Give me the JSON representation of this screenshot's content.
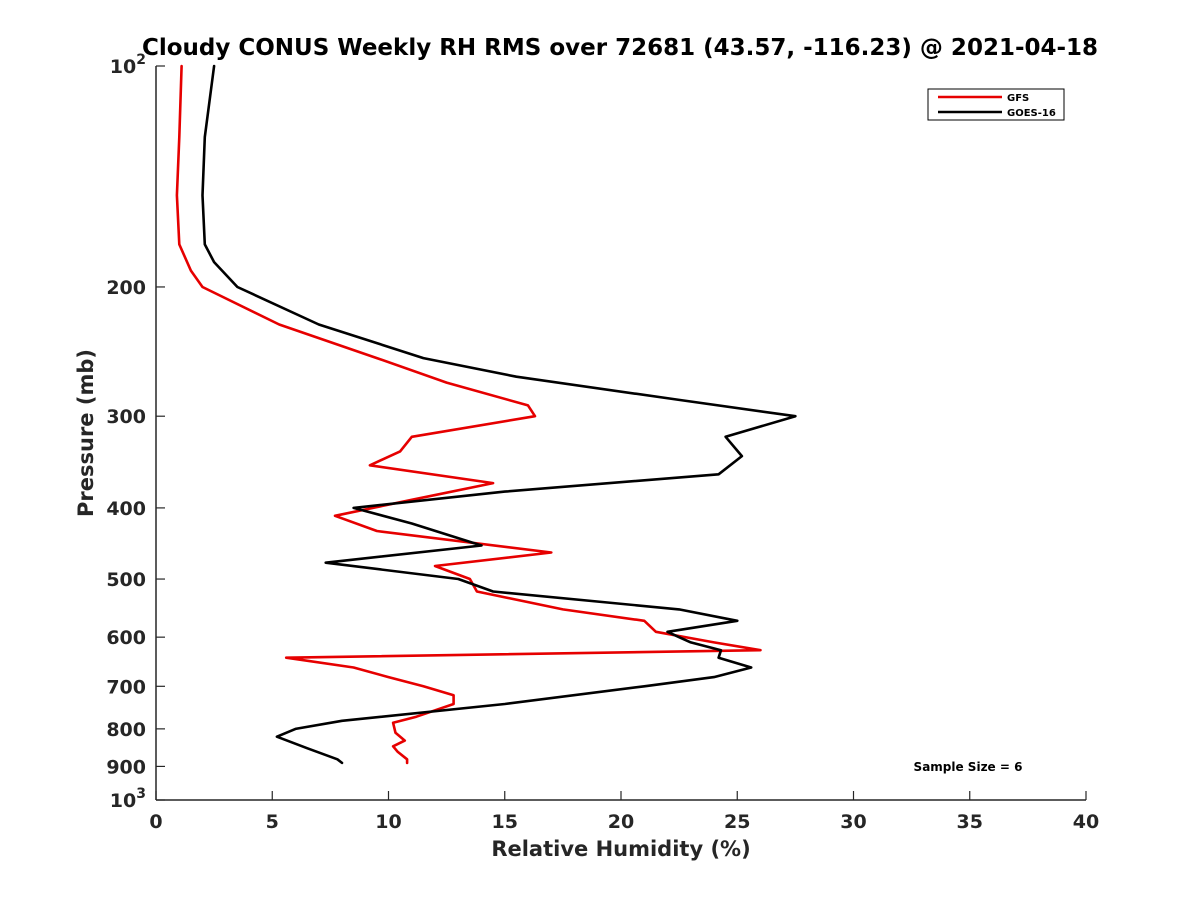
{
  "chart_data": {
    "type": "line",
    "title": "Cloudy CONUS Weekly RH RMS over 72681 (43.57, -116.23) @ 2021-04-18",
    "xlabel": "Relative Humidity (%)",
    "ylabel": "Pressure (mb)",
    "xlim": [
      0,
      40
    ],
    "ylim": [
      100,
      1000
    ],
    "y_scale": "log",
    "y_reversed": true,
    "x_ticks": [
      0,
      5,
      10,
      15,
      20,
      25,
      30,
      35,
      40
    ],
    "x_tick_labels": [
      "0",
      "5",
      "10",
      "15",
      "20",
      "25",
      "30",
      "35",
      "40"
    ],
    "y_ticks": [
      {
        "value": 100,
        "label": "10",
        "sup": "2"
      },
      {
        "value": 200,
        "label": "200",
        "sup": ""
      },
      {
        "value": 300,
        "label": "300",
        "sup": ""
      },
      {
        "value": 400,
        "label": "400",
        "sup": ""
      },
      {
        "value": 500,
        "label": "500",
        "sup": ""
      },
      {
        "value": 600,
        "label": "600",
        "sup": ""
      },
      {
        "value": 700,
        "label": "700",
        "sup": ""
      },
      {
        "value": 800,
        "label": "800",
        "sup": ""
      },
      {
        "value": 900,
        "label": "900",
        "sup": ""
      },
      {
        "value": 1000,
        "label": "10",
        "sup": "3"
      }
    ],
    "legend_position": "top-right",
    "grid": false,
    "annotation": "Sample Size = 6",
    "series": [
      {
        "name": "GFS",
        "color": "#e60000",
        "points": [
          [
            1.1,
            100
          ],
          [
            1.0,
            125
          ],
          [
            0.9,
            150
          ],
          [
            1.0,
            175
          ],
          [
            1.5,
            190
          ],
          [
            2.0,
            200
          ],
          [
            5.3,
            225
          ],
          [
            9.5,
            250
          ],
          [
            12.5,
            270
          ],
          [
            16.0,
            290
          ],
          [
            16.3,
            300
          ],
          [
            11.0,
            320
          ],
          [
            10.5,
            335
          ],
          [
            9.2,
            350
          ],
          [
            14.5,
            370
          ],
          [
            11.0,
            390
          ],
          [
            7.7,
            410
          ],
          [
            9.5,
            430
          ],
          [
            17.0,
            460
          ],
          [
            12.0,
            480
          ],
          [
            13.5,
            500
          ],
          [
            13.8,
            520
          ],
          [
            17.5,
            550
          ],
          [
            21.0,
            570
          ],
          [
            21.5,
            590
          ],
          [
            24.0,
            610
          ],
          [
            26.0,
            625
          ],
          [
            5.6,
            640
          ],
          [
            8.5,
            660
          ],
          [
            10.0,
            680
          ],
          [
            11.5,
            700
          ],
          [
            12.8,
            720
          ],
          [
            12.8,
            740
          ],
          [
            11.2,
            770
          ],
          [
            10.2,
            785
          ],
          [
            10.3,
            810
          ],
          [
            10.7,
            830
          ],
          [
            10.2,
            845
          ],
          [
            10.4,
            860
          ],
          [
            10.8,
            880
          ],
          [
            10.8,
            890
          ]
        ]
      },
      {
        "name": "GOES-16",
        "color": "#000000",
        "points": [
          [
            2.5,
            100
          ],
          [
            2.1,
            125
          ],
          [
            2.0,
            150
          ],
          [
            2.1,
            175
          ],
          [
            2.5,
            185
          ],
          [
            3.5,
            200
          ],
          [
            7.0,
            225
          ],
          [
            11.5,
            250
          ],
          [
            15.5,
            265
          ],
          [
            22.5,
            285
          ],
          [
            27.5,
            300
          ],
          [
            24.5,
            320
          ],
          [
            25.2,
            340
          ],
          [
            24.2,
            360
          ],
          [
            15.0,
            380
          ],
          [
            8.5,
            400
          ],
          [
            11.0,
            420
          ],
          [
            14.0,
            450
          ],
          [
            7.3,
            475
          ],
          [
            13.0,
            500
          ],
          [
            14.5,
            520
          ],
          [
            22.5,
            550
          ],
          [
            25.0,
            570
          ],
          [
            22.0,
            590
          ],
          [
            22.5,
            600
          ],
          [
            23.0,
            610
          ],
          [
            24.3,
            625
          ],
          [
            24.2,
            640
          ],
          [
            25.6,
            660
          ],
          [
            24.0,
            680
          ],
          [
            21.0,
            700
          ],
          [
            15.0,
            740
          ],
          [
            8.0,
            780
          ],
          [
            6.0,
            800
          ],
          [
            5.2,
            820
          ],
          [
            6.5,
            850
          ],
          [
            7.8,
            880
          ],
          [
            8.0,
            890
          ]
        ]
      }
    ]
  }
}
